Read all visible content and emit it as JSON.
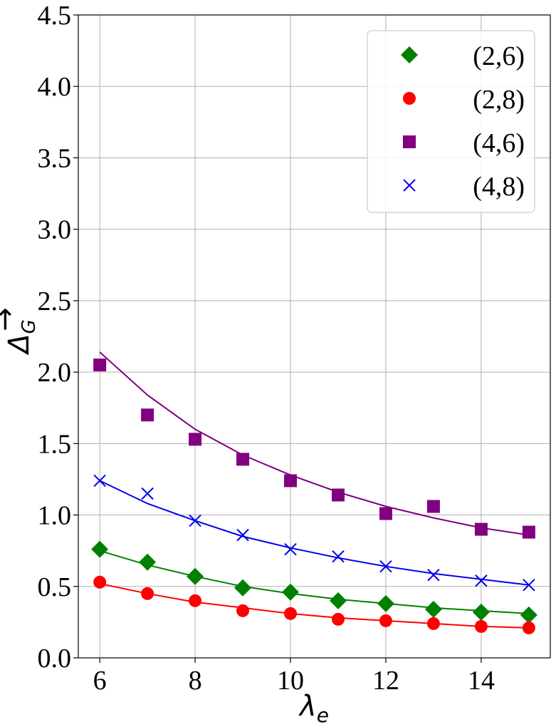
{
  "chart_data": {
    "type": "scatter",
    "title": "",
    "xlabel": "λ",
    "xlabel_sub": "e",
    "ylabel": "Δ",
    "ylabel_sub": "G",
    "ylabel_sub_accent": "→",
    "xlim": [
      5.55,
      15.45
    ],
    "ylim": [
      0,
      4.5
    ],
    "xticks": [
      6,
      8,
      10,
      12,
      14
    ],
    "xtick_labels": [
      "6",
      "8",
      "10",
      "12",
      "14"
    ],
    "yticks": [
      0,
      0.5,
      1.0,
      1.5,
      2.0,
      2.5,
      3.0,
      3.5,
      4.0,
      4.5
    ],
    "ytick_labels": [
      "0.0",
      "0.5",
      "1.0",
      "1.5",
      "2.0",
      "2.5",
      "3.0",
      "3.5",
      "4.0",
      "4.5"
    ],
    "grid": true,
    "legend_position": "top-right",
    "x": [
      6,
      7,
      8,
      9,
      10,
      11,
      12,
      13,
      14,
      15
    ],
    "series": [
      {
        "name": "(2,6)",
        "marker": "diamond",
        "color": "#008000",
        "values": [
          0.76,
          0.67,
          0.57,
          0.49,
          0.46,
          0.4,
          0.38,
          0.34,
          0.32,
          0.3
        ],
        "fit": [
          0.75,
          0.65,
          0.57,
          0.5,
          0.45,
          0.41,
          0.38,
          0.35,
          0.33,
          0.31
        ]
      },
      {
        "name": "(2,8)",
        "marker": "circle",
        "color": "#ff0000",
        "values": [
          0.53,
          0.45,
          0.4,
          0.33,
          0.31,
          0.27,
          0.26,
          0.24,
          0.22,
          0.21
        ],
        "fit": [
          0.52,
          0.45,
          0.39,
          0.35,
          0.31,
          0.28,
          0.26,
          0.24,
          0.22,
          0.21
        ]
      },
      {
        "name": "(4,6)",
        "marker": "square",
        "color": "#800080",
        "values": [
          2.05,
          1.7,
          1.53,
          1.39,
          1.24,
          1.14,
          1.01,
          1.06,
          0.9,
          0.88
        ],
        "fit": [
          2.14,
          1.84,
          1.6,
          1.42,
          1.28,
          1.16,
          1.06,
          0.98,
          0.91,
          0.86
        ]
      },
      {
        "name": "(4,8)",
        "marker": "x",
        "color": "#0000ee",
        "values": [
          1.24,
          1.15,
          0.96,
          0.86,
          0.76,
          0.71,
          0.64,
          0.58,
          0.54,
          0.51
        ],
        "fit": [
          1.24,
          1.08,
          0.96,
          0.85,
          0.77,
          0.7,
          0.64,
          0.59,
          0.55,
          0.51
        ]
      }
    ]
  }
}
